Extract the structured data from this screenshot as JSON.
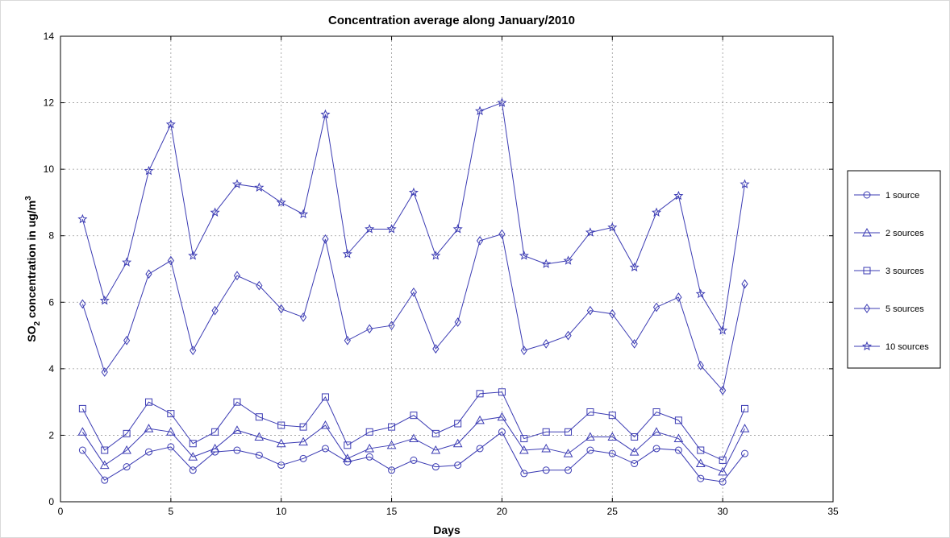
{
  "chart_data": {
    "type": "line",
    "title": "Concentration average along January/2010",
    "xlabel": "Days",
    "ylabel": {
      "prefix": "SO",
      "sub": "2",
      "mid": " concentration in ug/m",
      "sup": "3"
    },
    "xlim": [
      0,
      35
    ],
    "ylim": [
      0,
      14
    ],
    "xticks": [
      0,
      5,
      10,
      15,
      20,
      25,
      30,
      35
    ],
    "yticks": [
      0,
      2,
      4,
      6,
      8,
      10,
      12,
      14
    ],
    "grid": true,
    "legend_position": "right",
    "line_color": "#3b3bb3",
    "x": [
      1,
      2,
      3,
      4,
      5,
      6,
      7,
      8,
      9,
      10,
      11,
      12,
      13,
      14,
      15,
      16,
      17,
      18,
      19,
      20,
      21,
      22,
      23,
      24,
      25,
      26,
      27,
      28,
      29,
      30,
      31
    ],
    "series": [
      {
        "name": "1  source",
        "marker": "circle",
        "values": [
          1.55,
          0.65,
          1.05,
          1.5,
          1.65,
          0.95,
          1.5,
          1.55,
          1.4,
          1.1,
          1.3,
          1.6,
          1.2,
          1.35,
          0.95,
          1.25,
          1.05,
          1.1,
          1.6,
          2.1,
          0.85,
          0.95,
          0.95,
          1.55,
          1.45,
          1.15,
          1.6,
          1.55,
          0.7,
          0.6,
          1.45
        ]
      },
      {
        "name": "2 sources",
        "marker": "triangle",
        "values": [
          2.1,
          1.1,
          1.55,
          2.2,
          2.1,
          1.35,
          1.6,
          2.15,
          1.95,
          1.75,
          1.8,
          2.3,
          1.3,
          1.6,
          1.7,
          1.9,
          1.55,
          1.75,
          2.45,
          2.55,
          1.55,
          1.6,
          1.45,
          1.95,
          1.95,
          1.5,
          2.1,
          1.9,
          1.15,
          0.9,
          2.2
        ]
      },
      {
        "name": "3 sources",
        "marker": "square",
        "values": [
          2.8,
          1.55,
          2.05,
          3.0,
          2.65,
          1.75,
          2.1,
          3.0,
          2.55,
          2.3,
          2.25,
          3.15,
          1.7,
          2.1,
          2.25,
          2.6,
          2.05,
          2.35,
          3.25,
          3.3,
          1.9,
          2.1,
          2.1,
          2.7,
          2.6,
          1.95,
          2.7,
          2.45,
          1.55,
          1.25,
          2.8
        ]
      },
      {
        "name": "5 sources",
        "marker": "diamond",
        "values": [
          5.95,
          3.9,
          4.85,
          6.85,
          7.25,
          4.55,
          5.75,
          6.8,
          6.5,
          5.8,
          5.55,
          7.9,
          4.85,
          5.2,
          5.3,
          6.3,
          4.6,
          5.4,
          7.85,
          8.05,
          4.55,
          4.75,
          5.0,
          5.75,
          5.65,
          4.75,
          5.85,
          6.15,
          4.1,
          3.35,
          6.55
        ]
      },
      {
        "name": "10 sources",
        "marker": "star",
        "values": [
          8.5,
          6.05,
          7.2,
          9.95,
          11.35,
          7.4,
          8.7,
          9.55,
          9.45,
          9.0,
          8.65,
          11.65,
          7.45,
          8.2,
          8.2,
          9.3,
          7.4,
          8.2,
          11.75,
          12.0,
          7.4,
          7.15,
          7.25,
          8.1,
          8.25,
          7.05,
          8.7,
          9.2,
          6.25,
          5.15,
          9.55
        ]
      }
    ]
  }
}
